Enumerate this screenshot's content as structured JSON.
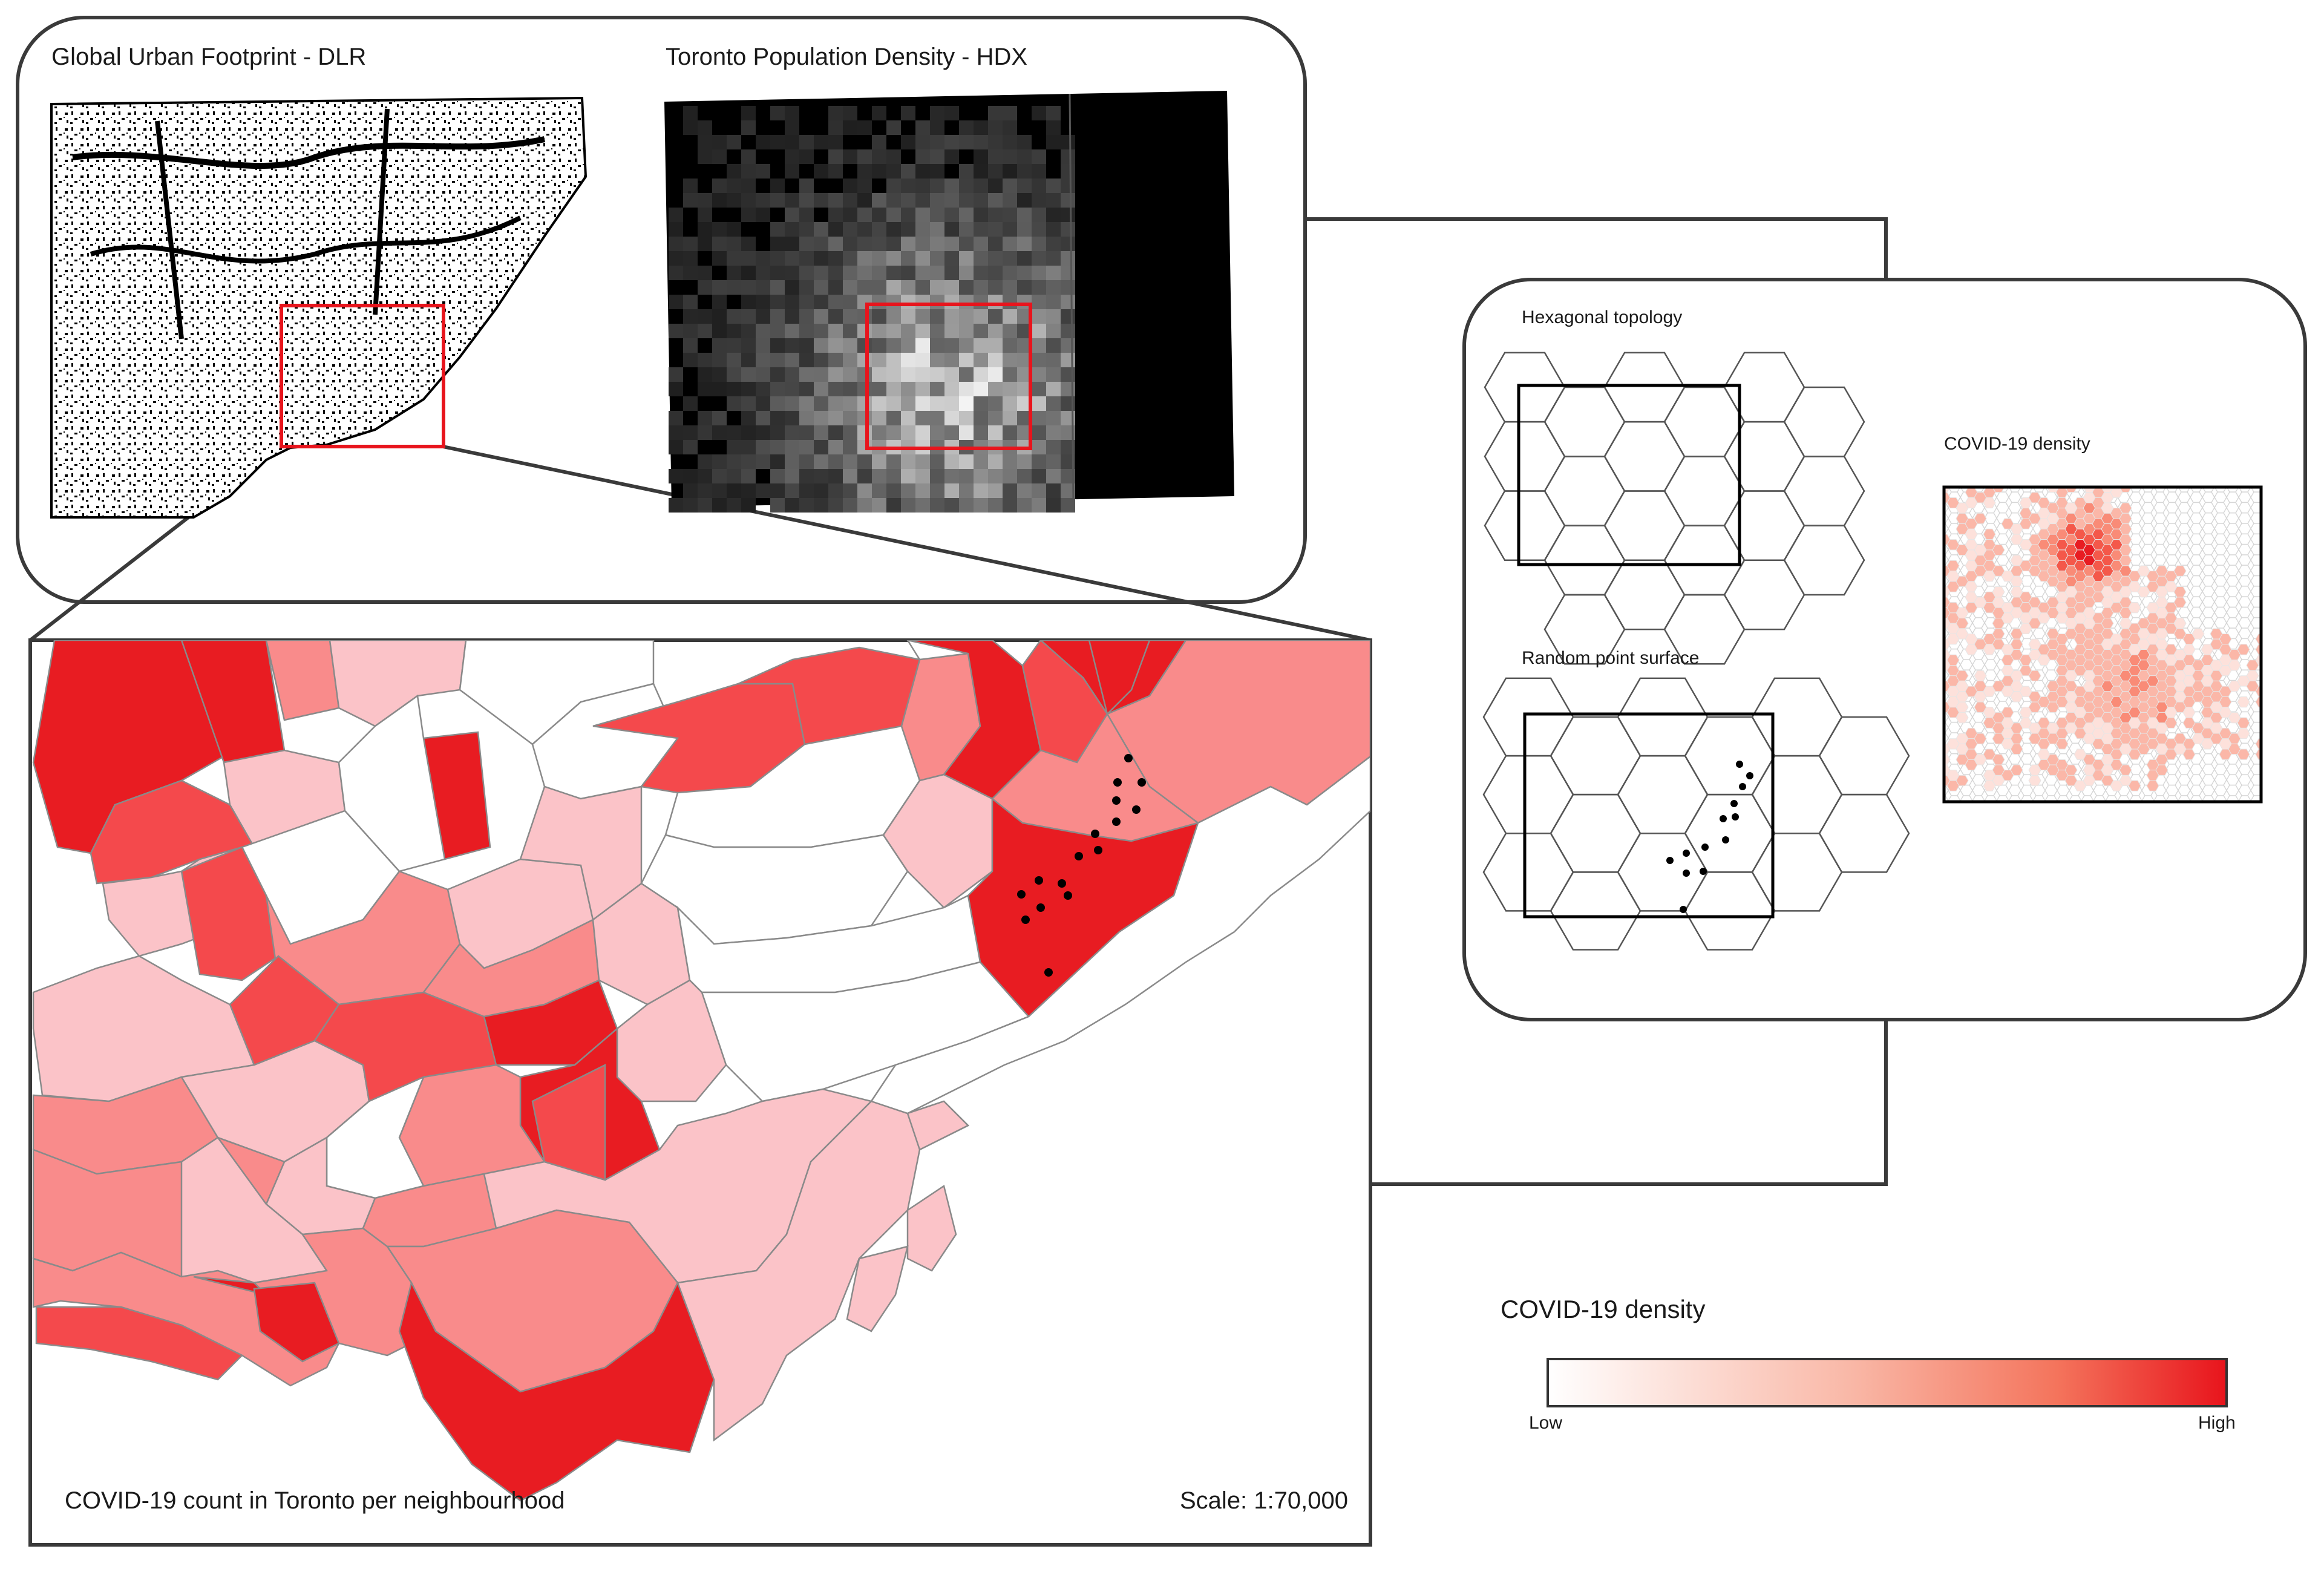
{
  "panels": {
    "urban_footprint": {
      "title": "Global Urban Footprint - DLR"
    },
    "population_density": {
      "title": "Toronto Population Density - HDX"
    },
    "main_map": {
      "caption": "COVID-19 count in Toronto per neighbourhood",
      "scale": "Scale: 1:70,000"
    },
    "method": {
      "hexagonal_topology": "Hexagonal topology",
      "random_point_surface": "Random point surface",
      "covid_density": "COVID-19 density"
    }
  },
  "legend": {
    "title": "COVID-19 density",
    "low": "Low",
    "high": "High",
    "color_low": "#ffffff",
    "color_high": "#e8141c"
  },
  "colors": {
    "frame": "#3a3a3a",
    "highlight": "#e8141c",
    "choropleth": [
      "#fbc3c8",
      "#f98b8b",
      "#f4494c",
      "#e81c22"
    ],
    "hex_dark": "#b0121a"
  }
}
